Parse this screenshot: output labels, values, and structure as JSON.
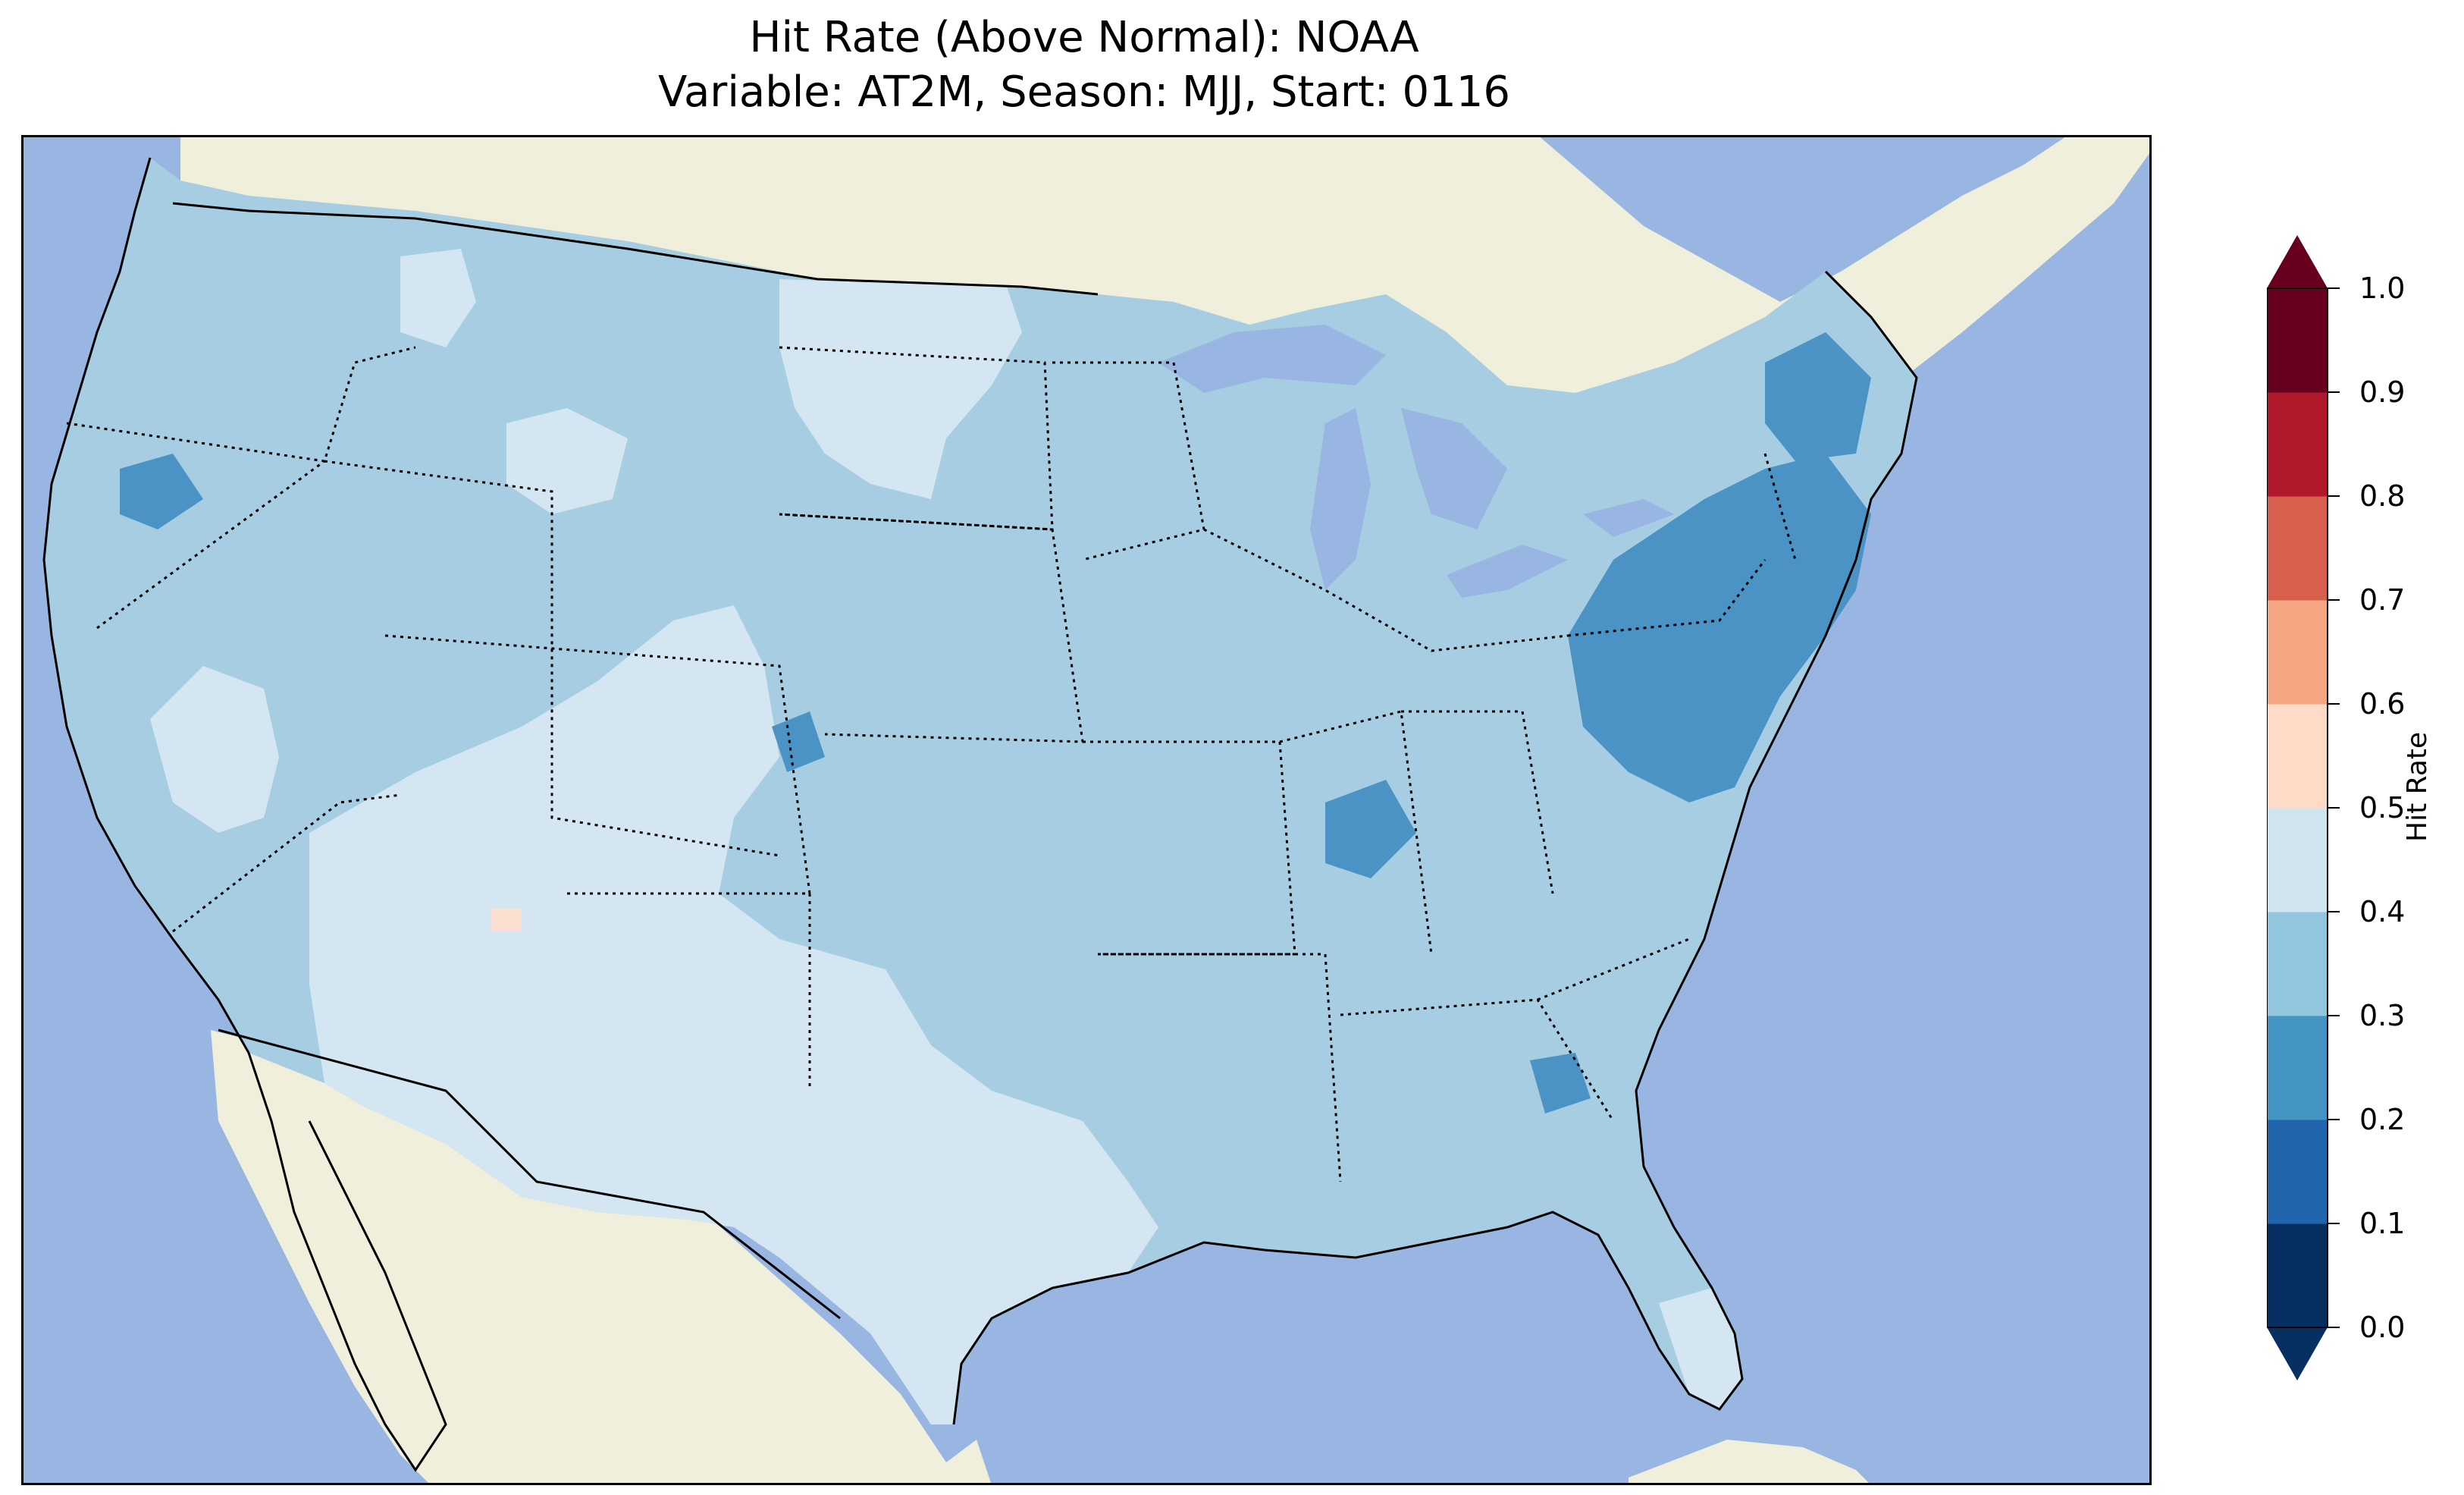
{
  "title": {
    "line1": "Hit Rate (Above Normal): NOAA",
    "line2": "Variable: AT2M, Season: MJJ, Start: 0116"
  },
  "colors": {
    "ocean": "#98b6e1",
    "land": "#efefdc",
    "frame": "#000000"
  },
  "colorbar": {
    "label": "Hit Rate",
    "ticks": [
      "0.0",
      "0.1",
      "0.2",
      "0.3",
      "0.4",
      "0.5",
      "0.6",
      "0.7",
      "0.8",
      "0.9",
      "1.0"
    ],
    "colors": [
      "#053061",
      "#2166ac",
      "#4393c3",
      "#92c5de",
      "#d1e5f0",
      "#fddbc7",
      "#f4a582",
      "#d6604d",
      "#b2182b",
      "#67001f"
    ],
    "extend": "both"
  },
  "map": {
    "region": "CONUS",
    "regions": [
      {
        "name": "west-coast",
        "value": 0.35
      },
      {
        "name": "pacific-northwest-interior",
        "value": 0.35
      },
      {
        "name": "great-basin-patch",
        "value": 0.45
      },
      {
        "name": "southwest",
        "value": 0.45
      },
      {
        "name": "four-corners",
        "value": 0.45
      },
      {
        "name": "montana-wyoming-patch",
        "value": 0.45
      },
      {
        "name": "dakotas",
        "value": 0.45
      },
      {
        "name": "texas",
        "value": 0.45
      },
      {
        "name": "florida",
        "value": 0.45
      },
      {
        "name": "great-plains",
        "value": 0.35
      },
      {
        "name": "midwest",
        "value": 0.35
      },
      {
        "name": "southeast",
        "value": 0.35
      },
      {
        "name": "northeast",
        "value": 0.25
      },
      {
        "name": "mid-atlantic",
        "value": 0.25
      },
      {
        "name": "ohio-valley-patch",
        "value": 0.25
      },
      {
        "name": "oregon-patch",
        "value": 0.25
      },
      {
        "name": "colorado-patch",
        "value": 0.25
      },
      {
        "name": "arizona-cell",
        "value": 0.55
      }
    ]
  }
}
